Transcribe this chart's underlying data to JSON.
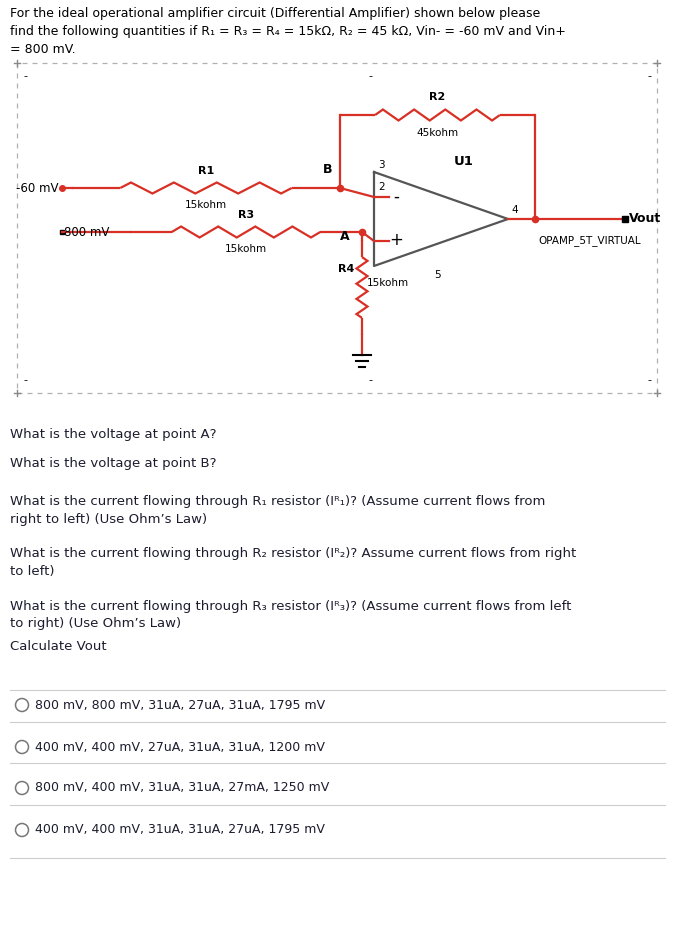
{
  "bg_color": "#ffffff",
  "text_color": "#1a1a2e",
  "dark_text": "#1c1c2e",
  "red": "#d93025",
  "black": "#000000",
  "gray": "#888888",
  "light_gray": "#cccccc",
  "circuit": {
    "vin_minus_label": "-60 mV",
    "vin_plus_label": "800 mV",
    "r1_label": "R1",
    "r1_val": "15kohm",
    "r2_label": "R2",
    "r2_val": "45kohm",
    "r3_label": "R3",
    "r3_val": "15kohm",
    "r4_label": "R4",
    "r4_val": "15kohm",
    "u1_label": "U1",
    "opamp_label": "OPAMP_5T_VIRTUAL",
    "vout_label": "Vout",
    "point_a": "A",
    "point_b": "B",
    "pin2": "2",
    "pin3": "3",
    "pin4": "4",
    "pin5": "5"
  },
  "title_lines": [
    "For the ideal operational amplifier circuit (Differential Amplifier) shown below please",
    "find the following quantities if R₁ = R₃ = R₄ = 15kΩ, R₂ = 45 kΩ, Vin- = -60 mV and Vin+",
    "= 800 mV."
  ],
  "questions": [
    "What is the voltage at point A?",
    "What is the voltage at point B?",
    "What is the current flowing through R₁ resistor (Iᴿ₁)? (Assume current flows from\nright to left) (Use Ohm’s Law)",
    "What is the current flowing through R₂ resistor (Iᴿ₂)? Assume current flows from right\nto left)",
    "What is the current flowing through R₃ resistor (Iᴿ₃)? (Assume current flows from left\nto right) (Use Ohm’s Law)",
    "Calculate Vout"
  ],
  "options": [
    "800 mV, 800 mV, 31uA, 27uA, 31uA, 1795 mV",
    "400 mV, 400 mV, 27uA, 31uA, 31uA, 1200 mV",
    "800 mV, 400 mV, 31uA, 31uA, 27mA, 1250 mV",
    "400 mV, 400 mV, 31uA, 31uA, 27uA, 1795 mV"
  ]
}
